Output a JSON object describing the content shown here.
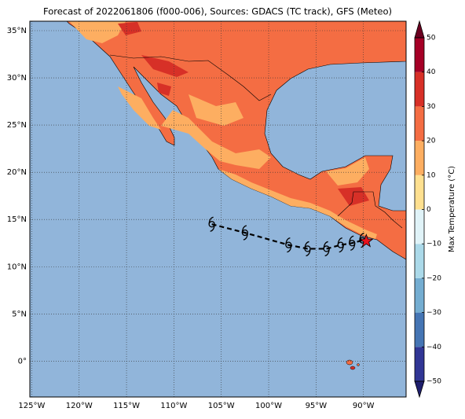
{
  "title": "Forecast of 2022061806 (f000-006), Sources: GDACS (TC track), GFS (Meteo)",
  "map": {
    "xlim": [
      -125.2,
      -85.5
    ],
    "ylim": [
      -3.8,
      36
    ],
    "xticks": [
      {
        "value": -125,
        "label": "125°W"
      },
      {
        "value": -120,
        "label": "120°W"
      },
      {
        "value": -115,
        "label": "115°W"
      },
      {
        "value": -110,
        "label": "110°W"
      },
      {
        "value": -105,
        "label": "105°W"
      },
      {
        "value": -100,
        "label": "100°W"
      },
      {
        "value": -95,
        "label": "95°W"
      },
      {
        "value": -90,
        "label": "90°W"
      }
    ],
    "yticks": [
      {
        "value": 0,
        "label": "0°"
      },
      {
        "value": 5,
        "label": "5°N"
      },
      {
        "value": 10,
        "label": "10°N"
      },
      {
        "value": 15,
        "label": "15°N"
      },
      {
        "value": 20,
        "label": "20°N"
      },
      {
        "value": 25,
        "label": "25°N"
      },
      {
        "value": 30,
        "label": "30°N"
      },
      {
        "value": 35,
        "label": "35°N"
      }
    ],
    "grid": true,
    "ocean_color": "#91b5da",
    "land_color": "#f46d43"
  },
  "track": {
    "lon": [
      -106.0,
      -102.5,
      -97.9,
      -95.9,
      -93.9,
      -92.4,
      -91.2,
      -90.1
    ],
    "lat": [
      14.5,
      13.6,
      12.3,
      11.9,
      11.9,
      12.3,
      12.5,
      12.8
    ],
    "current": {
      "lon": -89.7,
      "lat": 12.7
    },
    "current_color": "#e8141e"
  },
  "colorbar": {
    "label": "Max Temperature (°C)",
    "levels": [
      -50,
      -40,
      -30,
      -20,
      -10,
      0,
      10,
      20,
      30,
      40,
      50
    ],
    "colors": [
      "#313695",
      "#4575b4",
      "#74add1",
      "#abd9e9",
      "#e0f3f8",
      "#fee090",
      "#fdae61",
      "#f46d43",
      "#d73027",
      "#a50026"
    ],
    "under_color": "#1f1f6e",
    "over_color": "#6b0020",
    "ticks": [
      {
        "value": -50,
        "label": "−50"
      },
      {
        "value": -40,
        "label": "−40"
      },
      {
        "value": -30,
        "label": "−30"
      },
      {
        "value": -20,
        "label": "−20"
      },
      {
        "value": -10,
        "label": "−10"
      },
      0,
      10,
      20,
      30,
      40,
      50
    ]
  }
}
